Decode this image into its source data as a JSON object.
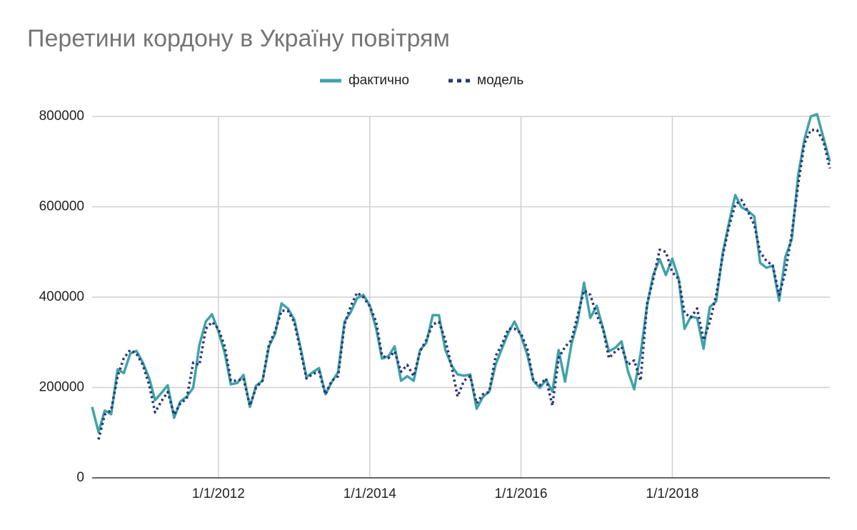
{
  "chart_data": {
    "type": "line",
    "title": "Перетини кордону в Україну повітрям",
    "x": [
      "5/1/2010",
      "6/1/2010",
      "7/1/2010",
      "8/1/2010",
      "9/1/2010",
      "10/1/2010",
      "11/1/2010",
      "12/1/2010",
      "1/1/2011",
      "2/1/2011",
      "3/1/2011",
      "4/1/2011",
      "5/1/2011",
      "6/1/2011",
      "7/1/2011",
      "8/1/2011",
      "9/1/2011",
      "10/1/2011",
      "11/1/2011",
      "12/1/2011",
      "1/1/2012",
      "2/1/2012",
      "3/1/2012",
      "4/1/2012",
      "5/1/2012",
      "6/1/2012",
      "7/1/2012",
      "8/1/2012",
      "9/1/2012",
      "10/1/2012",
      "11/1/2012",
      "12/1/2012",
      "1/1/2013",
      "2/1/2013",
      "3/1/2013",
      "4/1/2013",
      "5/1/2013",
      "6/1/2013",
      "7/1/2013",
      "8/1/2013",
      "9/1/2013",
      "10/1/2013",
      "11/1/2013",
      "12/1/2013",
      "1/1/2014",
      "2/1/2014",
      "3/1/2014",
      "4/1/2014",
      "5/1/2014",
      "6/1/2014",
      "7/1/2014",
      "8/1/2014",
      "9/1/2014",
      "10/1/2014",
      "11/1/2014",
      "12/1/2014",
      "1/1/2015",
      "2/1/2015",
      "3/1/2015",
      "4/1/2015",
      "5/1/2015",
      "6/1/2015",
      "7/1/2015",
      "8/1/2015",
      "9/1/2015",
      "10/1/2015",
      "11/1/2015",
      "12/1/2015",
      "1/1/2016",
      "2/1/2016",
      "3/1/2016",
      "4/1/2016",
      "5/1/2016",
      "6/1/2016",
      "7/1/2016",
      "8/1/2016",
      "9/1/2016",
      "10/1/2016",
      "11/1/2016",
      "12/1/2016",
      "1/1/2017",
      "2/1/2017",
      "3/1/2017",
      "4/1/2017",
      "5/1/2017",
      "6/1/2017",
      "7/1/2017",
      "8/1/2017",
      "9/1/2017",
      "10/1/2017",
      "11/1/2017",
      "12/1/2017",
      "1/1/2018",
      "2/1/2018",
      "3/1/2018",
      "4/1/2018",
      "5/1/2018",
      "6/1/2018",
      "7/1/2018",
      "8/1/2018",
      "9/1/2018",
      "10/1/2018",
      "11/1/2018",
      "12/1/2018",
      "1/1/2019",
      "2/1/2019",
      "3/1/2019",
      "4/1/2019",
      "5/1/2019",
      "6/1/2019",
      "7/1/2019",
      "8/1/2019",
      "9/1/2019",
      "10/1/2019",
      "11/1/2019",
      "12/1/2019",
      "1/1/2020",
      "2/1/2020"
    ],
    "series": [
      {
        "name": "фактично",
        "color": "#3fa3a8",
        "style": "solid",
        "values": [
          157000,
          101000,
          149000,
          141000,
          240000,
          232000,
          275000,
          281000,
          255000,
          220000,
          172000,
          188000,
          205000,
          133000,
          169000,
          180000,
          199000,
          294000,
          346000,
          362000,
          324000,
          275000,
          207000,
          210000,
          228000,
          157000,
          204000,
          215000,
          291000,
          319000,
          386000,
          375000,
          351000,
          288000,
          223000,
          234000,
          243000,
          185000,
          212000,
          234000,
          346000,
          367000,
          398000,
          405000,
          381000,
          330000,
          264000,
          269000,
          291000,
          215000,
          225000,
          215000,
          283000,
          299000,
          360000,
          360000,
          283000,
          248000,
          229000,
          226000,
          229000,
          153000,
          179000,
          191000,
          251000,
          286000,
          321000,
          346000,
          315000,
          272000,
          215000,
          199000,
          217000,
          191000,
          283000,
          213000,
          296000,
          346000,
          432000,
          354000,
          381000,
          330000,
          280000,
          288000,
          302000,
          236000,
          196000,
          275000,
          381000,
          449000,
          484000,
          449000,
          485000,
          441000,
          330000,
          357000,
          354000,
          286000,
          378000,
          391000,
          496000,
          563000,
          626000,
          599000,
          591000,
          579000,
          476000,
          465000,
          470000,
          392000,
          489000,
          528000,
          670000,
          749000,
          800000,
          805000,
          753000,
          700000
        ]
      },
      {
        "name": "модель",
        "color": "#2b3479",
        "style": "dotted",
        "values": [
          null,
          85000,
          140000,
          150000,
          225000,
          265000,
          283000,
          275000,
          250000,
          205000,
          145000,
          170000,
          190000,
          140000,
          165000,
          175000,
          255000,
          250000,
          330000,
          345000,
          330000,
          290000,
          215000,
          215000,
          220000,
          160000,
          200000,
          215000,
          295000,
          325000,
          370000,
          370000,
          345000,
          280000,
          220000,
          230000,
          235000,
          185000,
          215000,
          225000,
          340000,
          380000,
          410000,
          400000,
          380000,
          345000,
          270000,
          265000,
          280000,
          235000,
          250000,
          225000,
          280000,
          305000,
          340000,
          345000,
          305000,
          245000,
          180000,
          215000,
          225000,
          165000,
          185000,
          190000,
          270000,
          295000,
          330000,
          330000,
          320000,
          285000,
          215000,
          205000,
          220000,
          160000,
          265000,
          290000,
          305000,
          360000,
          415000,
          405000,
          360000,
          330000,
          265000,
          280000,
          290000,
          250000,
          260000,
          215000,
          385000,
          440000,
          505000,
          500000,
          455000,
          440000,
          365000,
          355000,
          375000,
          305000,
          345000,
          405000,
          490000,
          555000,
          605000,
          615000,
          590000,
          560000,
          500000,
          480000,
          470000,
          405000,
          455000,
          540000,
          650000,
          740000,
          770000,
          770000,
          745000,
          685000
        ]
      }
    ],
    "xlim": [
      "5/1/2010",
      "2/1/2020"
    ],
    "xticks": [
      "1/1/2012",
      "1/1/2014",
      "1/1/2016",
      "1/1/2018"
    ],
    "ylim": [
      0,
      800000
    ],
    "yticks": [
      0,
      200000,
      400000,
      600000,
      800000
    ],
    "grid": true,
    "legend": "top"
  }
}
